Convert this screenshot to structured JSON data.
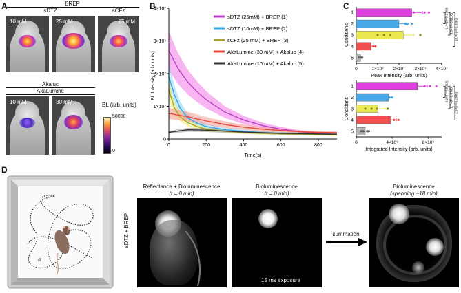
{
  "panelA": {
    "label": "A",
    "brep": "BREP",
    "sdtz": "sDTZ",
    "scfz": "sCFz",
    "akaluc": "Akaluc",
    "akalumine": "AkaLumine",
    "img1": "10 mM",
    "img2": "25 mM",
    "img3": "25 mM",
    "img4": "10 mM",
    "img5": "30 mM",
    "cbar_title": "BL (arb. units)",
    "cbar_max": "50000",
    "cbar_min": "0"
  },
  "panelB": {
    "label": "B",
    "chart_data": {
      "type": "line",
      "ylabel": "BL Intensity (arb. units)",
      "xlabel": "Time(s)",
      "xlim": [
        0,
        900
      ],
      "ylim": [
        0,
        40000000
      ],
      "xticks": [
        "0",
        "200",
        "400",
        "600",
        "800"
      ],
      "yticks": [
        "0",
        "1×10⁷",
        "2×10⁷",
        "3×10⁷",
        "4×10⁷"
      ],
      "legend_position": "top-right",
      "series": [
        {
          "name": "sDTZ (25mM) + BREP (1)",
          "color": "#b93fc7",
          "band": "#f07ae6",
          "x": [
            0,
            50,
            100,
            150,
            200,
            300,
            400,
            500,
            600,
            700,
            800,
            900
          ],
          "y": [
            27000000,
            21500000,
            17500000,
            14500000,
            12000000,
            8200000,
            5800000,
            4100000,
            3000000,
            2200000,
            1700000,
            1400000
          ]
        },
        {
          "name": "sDTZ (10mM) + BREP (2)",
          "color": "#2aa4e8",
          "band": "#93d4f5",
          "x": [
            0,
            30,
            60,
            100,
            150,
            200,
            300,
            400,
            500,
            600,
            700,
            800,
            900
          ],
          "y": [
            19000000,
            13500000,
            9500000,
            6500000,
            4800000,
            3800000,
            2800000,
            2300000,
            1900000,
            1700000,
            1600000,
            1500000,
            1400000
          ]
        },
        {
          "name": "sCFz (25 mM) + BREP (3)",
          "color": "#a5a52a",
          "band": "#eded7a",
          "x": [
            0,
            30,
            60,
            100,
            150,
            200,
            300,
            400,
            500,
            600,
            700,
            800,
            900
          ],
          "y": [
            15000000,
            9500000,
            6800000,
            5000000,
            3800000,
            3000000,
            2300000,
            1900000,
            1700000,
            1500000,
            1400000,
            1300000,
            1200000
          ]
        },
        {
          "name": "AkaLumine (30 mM) + Akaluc (4)",
          "color": "#e8473a",
          "band": "#f59a8f",
          "x": [
            0,
            100,
            200,
            300,
            400,
            500,
            600,
            700,
            800,
            900
          ],
          "y": [
            7800000,
            6800000,
            5500000,
            4400000,
            3600000,
            3000000,
            2600000,
            2200000,
            2000000,
            1900000
          ]
        },
        {
          "name": "AkaLumine (10 mM) + Akaluc (5)",
          "color": "#333333",
          "band": "#9a9a9a",
          "x": [
            0,
            100,
            200,
            300,
            400,
            500,
            600,
            700,
            800,
            900
          ],
          "y": [
            2000000,
            2800000,
            2700000,
            2400000,
            2100000,
            1900000,
            1700000,
            1600000,
            1500000,
            1400000
          ]
        }
      ]
    }
  },
  "panelC": {
    "label": "C",
    "chart_data": [
      {
        "type": "bar",
        "orientation": "horizontal",
        "ylabel": "Conditions",
        "xlabel": "Peak Intensity (arb. units)",
        "xlim": [
          0,
          40000000
        ],
        "xticks": [
          "0",
          "1×10⁷",
          "2×10⁷",
          "3×10⁷",
          "4×10⁷"
        ],
        "categories": [
          "1",
          "2",
          "3",
          "4",
          "5"
        ],
        "values": [
          26000000,
          20000000,
          22000000,
          7000000,
          2000000
        ],
        "errors": [
          5000000,
          3500000,
          5000000,
          2000000,
          600000
        ],
        "colors": [
          "#e040e0",
          "#48a8e8",
          "#eaea50",
          "#f05050",
          "#b5b5b5"
        ],
        "points": [
          [
            10000000,
            27000000,
            32000000,
            34000000
          ],
          [
            17000000,
            23000000,
            24000000,
            26000000
          ],
          [
            10000000,
            13000000,
            16000000,
            30000000
          ],
          [
            4000000,
            6500000,
            8000000,
            9000000
          ],
          [
            1200000,
            1800000,
            2300000,
            2800000
          ]
        ],
        "annotations": [
          "1.4×(P=0.2709)",
          "3.5×(P=0.0110)",
          "10.9×(P=0.0389)"
        ]
      },
      {
        "type": "bar",
        "orientation": "horizontal",
        "ylabel": "Conditions",
        "xlabel": "Integrated Intensity (arb. units)",
        "xlim": [
          0,
          9500000000
        ],
        "xticks": [
          "0",
          "4×10⁹",
          "8×10⁹"
        ],
        "categories": [
          "1",
          "2",
          "3",
          "4",
          "5"
        ],
        "values": [
          6800000000,
          3600000000,
          2400000000,
          3800000000,
          1000000000
        ],
        "errors": [
          1100000000,
          500000000,
          900000000,
          700000000,
          300000000
        ],
        "colors": [
          "#e040e0",
          "#48a8e8",
          "#eaea50",
          "#f05050",
          "#b5b5b5"
        ],
        "points": [
          [
            3000000000,
            7600000000,
            8200000000,
            8900000000
          ],
          [
            2700000000,
            3100000000,
            3700000000,
            4000000000
          ],
          [
            1000000000,
            1700000000,
            2300000000,
            3500000000
          ],
          [
            3000000000,
            3400000000,
            4200000000,
            4700000000
          ],
          [
            500000000,
            800000000,
            1200000000,
            1400000000
          ]
        ],
        "annotations": [
          "3.2×(P=0.0012)",
          "1.7×(P=0.0700)",
          "2.9×(P=0.2886)"
        ]
      }
    ]
  },
  "panelD": {
    "label": "D",
    "condition": "sDTZ + BREP",
    "img1_title": "Reflectance + Bioluminescence",
    "img1_sub": "(t = 0 min)",
    "img2_title": "Bioluminescence",
    "img2_sub": "(t = 0 min)",
    "exposure": "15 ms exposure",
    "arrow_label": "summation",
    "img3_title": "Bioluminescence",
    "img3_sub": "(spanning ~18 min)"
  }
}
